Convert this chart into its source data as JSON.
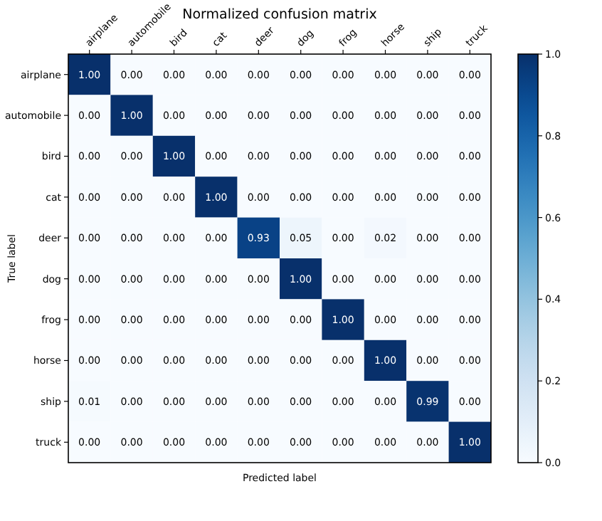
{
  "chart_data": {
    "type": "heatmap",
    "title": "Normalized confusion matrix",
    "xlabel": "Predicted label",
    "ylabel": "True label",
    "categories": [
      "airplane",
      "automobile",
      "bird",
      "cat",
      "deer",
      "dog",
      "frog",
      "horse",
      "ship",
      "truck"
    ],
    "y_categories": [
      "airplane",
      "automobile",
      "bird",
      "cat",
      "deer",
      "dog",
      "frog",
      "horse",
      "ship",
      "truck"
    ],
    "cells": [
      [
        1.0,
        0,
        0,
        0,
        0,
        0,
        0,
        0,
        0,
        0
      ],
      [
        0,
        1.0,
        0,
        0,
        0,
        0,
        0,
        0,
        0,
        0
      ],
      [
        0,
        0,
        1.0,
        0,
        0,
        0,
        0,
        0,
        0,
        0
      ],
      [
        0,
        0,
        0,
        1.0,
        0,
        0,
        0,
        0,
        0,
        0
      ],
      [
        0,
        0,
        0,
        0,
        0.93,
        0.05,
        0,
        0.02,
        0,
        0
      ],
      [
        0,
        0,
        0,
        0,
        0,
        1.0,
        0,
        0,
        0,
        0
      ],
      [
        0,
        0,
        0,
        0,
        0,
        0,
        1.0,
        0,
        0,
        0
      ],
      [
        0,
        0,
        0,
        0,
        0,
        0,
        0,
        1.0,
        0,
        0
      ],
      [
        0.01,
        0,
        0,
        0,
        0,
        0,
        0,
        0,
        0.99,
        0
      ],
      [
        0,
        0,
        0,
        0,
        0,
        0,
        0,
        0,
        0,
        1.0
      ]
    ],
    "cell_labels": [
      [
        "1.00",
        "0.00",
        "0.00",
        "0.00",
        "0.00",
        "0.00",
        "0.00",
        "0.00",
        "0.00",
        "0.00"
      ],
      [
        "0.00",
        "1.00",
        "0.00",
        "0.00",
        "0.00",
        "0.00",
        "0.00",
        "0.00",
        "0.00",
        "0.00"
      ],
      [
        "0.00",
        "0.00",
        "1.00",
        "0.00",
        "0.00",
        "0.00",
        "0.00",
        "0.00",
        "0.00",
        "0.00"
      ],
      [
        "0.00",
        "0.00",
        "0.00",
        "1.00",
        "0.00",
        "0.00",
        "0.00",
        "0.00",
        "0.00",
        "0.00"
      ],
      [
        "0.00",
        "0.00",
        "0.00",
        "0.00",
        "0.93",
        "0.05",
        "0.00",
        "0.02",
        "0.00",
        "0.00"
      ],
      [
        "0.00",
        "0.00",
        "0.00",
        "0.00",
        "0.00",
        "1.00",
        "0.00",
        "0.00",
        "0.00",
        "0.00"
      ],
      [
        "0.00",
        "0.00",
        "0.00",
        "0.00",
        "0.00",
        "0.00",
        "1.00",
        "0.00",
        "0.00",
        "0.00"
      ],
      [
        "0.00",
        "0.00",
        "0.00",
        "0.00",
        "0.00",
        "0.00",
        "0.00",
        "1.00",
        "0.00",
        "0.00"
      ],
      [
        "0.01",
        "0.00",
        "0.00",
        "0.00",
        "0.00",
        "0.00",
        "0.00",
        "0.00",
        "0.99",
        "0.00"
      ],
      [
        "0.00",
        "0.00",
        "0.00",
        "0.00",
        "0.00",
        "0.00",
        "0.00",
        "0.00",
        "0.00",
        "1.00"
      ]
    ],
    "clim": [
      0,
      1
    ],
    "cticks": [
      {
        "value": 0,
        "label": "0.0"
      },
      0.2,
      0.4,
      0.6,
      0.8,
      {
        "value": 1,
        "label": "1.0"
      }
    ]
  }
}
